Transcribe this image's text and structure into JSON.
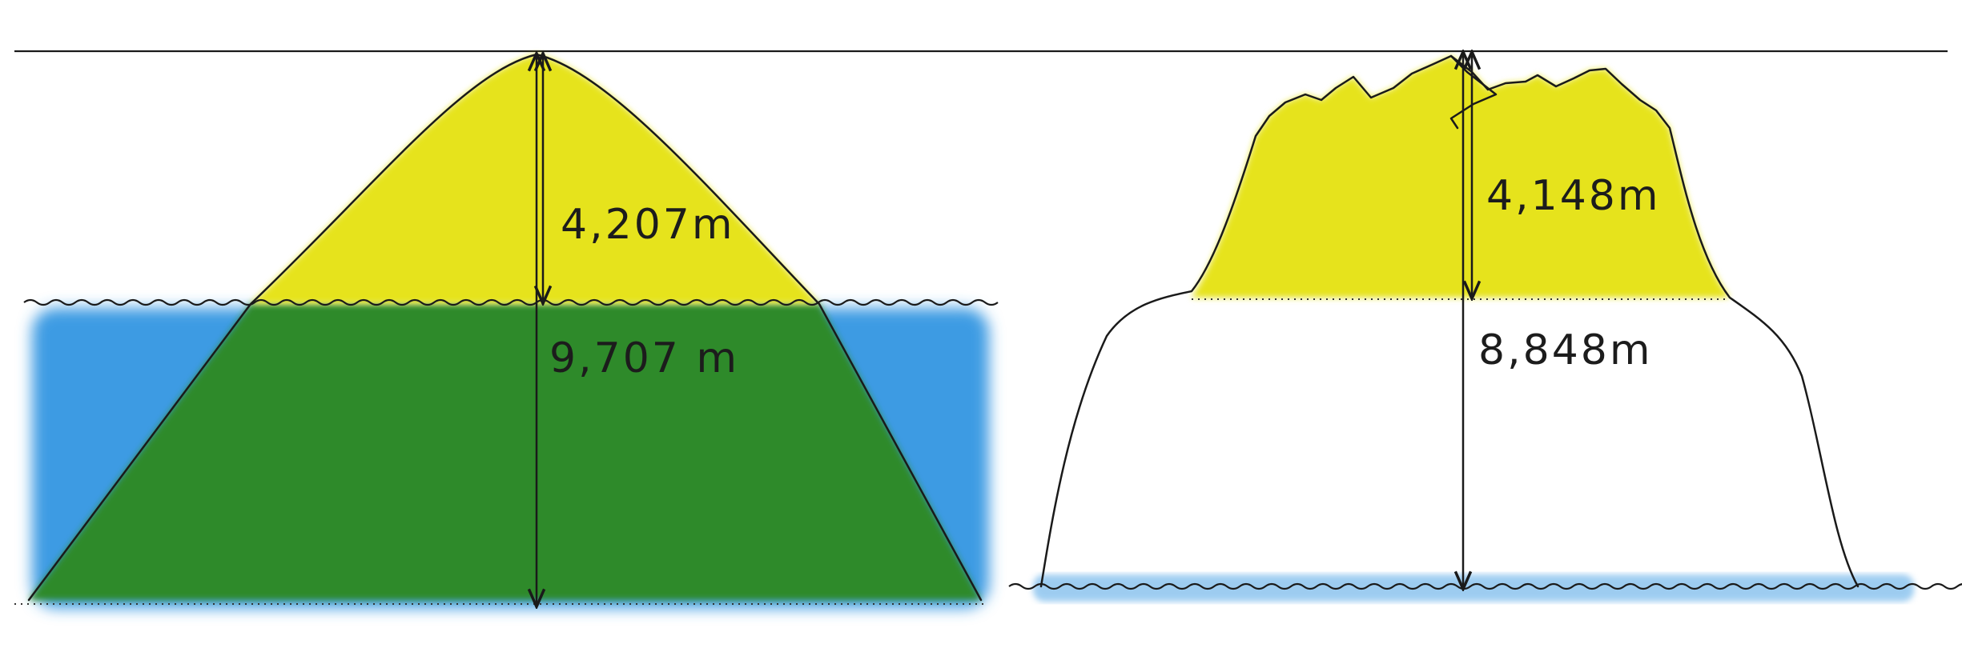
{
  "colors": {
    "ocean": "#3d9be3",
    "below_sea_mountain": "#2f8a2a",
    "above_sea_mountain": "#e6e31e",
    "outline": "#1a1a1a",
    "background": "#ffffff"
  },
  "left_mountain": {
    "above_sea_label": "4,207m",
    "total_label": "9,707 m"
  },
  "right_mountain": {
    "above_label": "4,148m",
    "total_label": "8,848m"
  }
}
